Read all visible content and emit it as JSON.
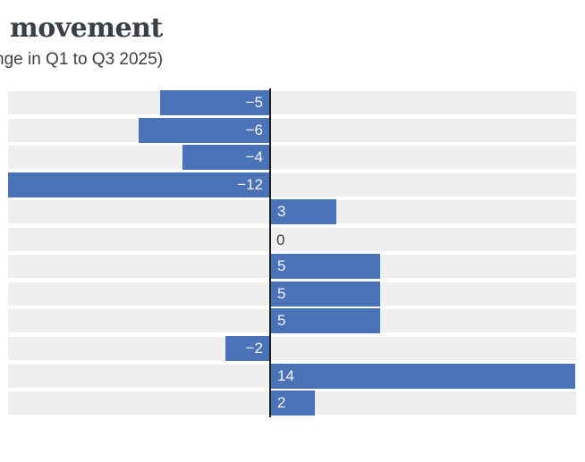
{
  "header": {
    "title_visible": "movement",
    "subtitle_visible": "nge in Q1 to Q3 2025)"
  },
  "chart_data": {
    "type": "bar",
    "orientation": "horizontal",
    "title": "movement",
    "subtitle": "nge in Q1 to Q3 2025)",
    "values": [
      -5,
      -6,
      -4,
      -12,
      3,
      0,
      5,
      5,
      5,
      -2,
      14,
      2
    ],
    "labels": [
      "−5",
      "−6",
      "−4",
      "−12",
      "3",
      "0",
      "5",
      "5",
      "5",
      "−2",
      "14",
      "2"
    ],
    "xlim": [
      -12.3,
      14.1
    ],
    "zero_line": true,
    "grid": "row-stripes",
    "legend": "none",
    "value_labels": "inside-bar-at-axis",
    "colors": {
      "bar": "#4a72b7",
      "stripe": "#efefee",
      "zero_line": "#1c1c1c",
      "bar_label": "#f5f5f5",
      "zero_value_label": "#3c3c3c",
      "title": "#3a3f46",
      "subtitle": "#3c4045"
    }
  }
}
